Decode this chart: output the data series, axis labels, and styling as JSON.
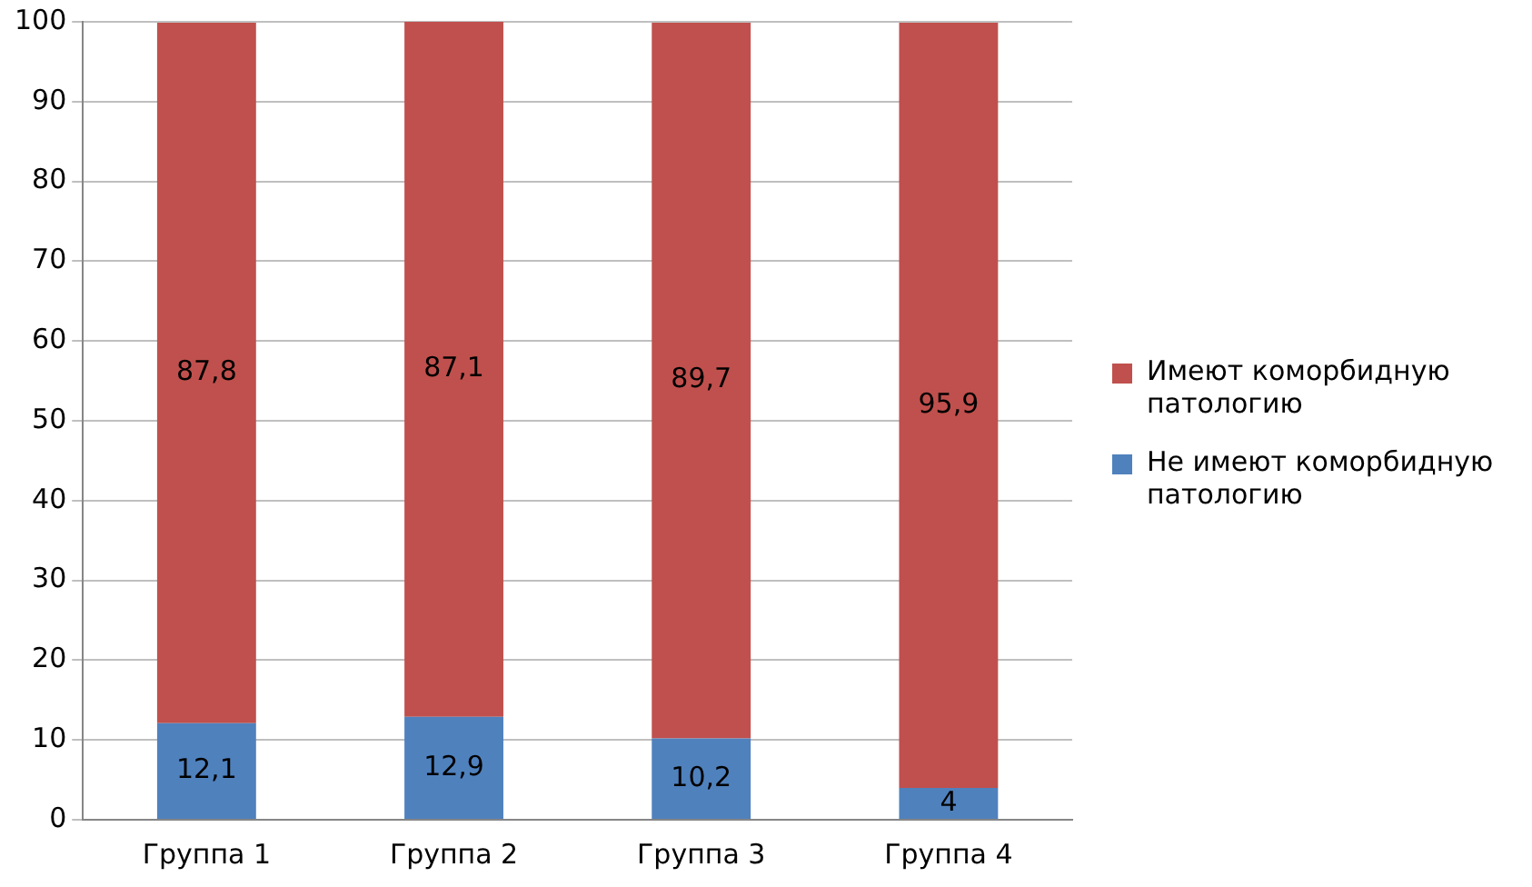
{
  "chart_data": {
    "type": "bar",
    "stacked": true,
    "categories": [
      "Группа 1",
      "Группа 2",
      "Группа 3",
      "Группа 4"
    ],
    "series": [
      {
        "name": "Не имеют коморбидную патологию",
        "color": "#4f81bd",
        "values": [
          12.1,
          12.9,
          10.2,
          4
        ],
        "value_labels": [
          "12,1",
          "12,9",
          "10,2",
          "4"
        ]
      },
      {
        "name": "Имеют коморбидную патологию",
        "color": "#c0504d",
        "values": [
          87.8,
          87.1,
          89.7,
          95.9
        ],
        "value_labels": [
          "87,8",
          "87,1",
          "89,7",
          "95,9"
        ]
      }
    ],
    "ylim": [
      0,
      100
    ],
    "yticks": [
      0,
      10,
      20,
      30,
      40,
      50,
      60,
      70,
      80,
      90,
      100
    ],
    "grid": "y",
    "legend": "right"
  }
}
